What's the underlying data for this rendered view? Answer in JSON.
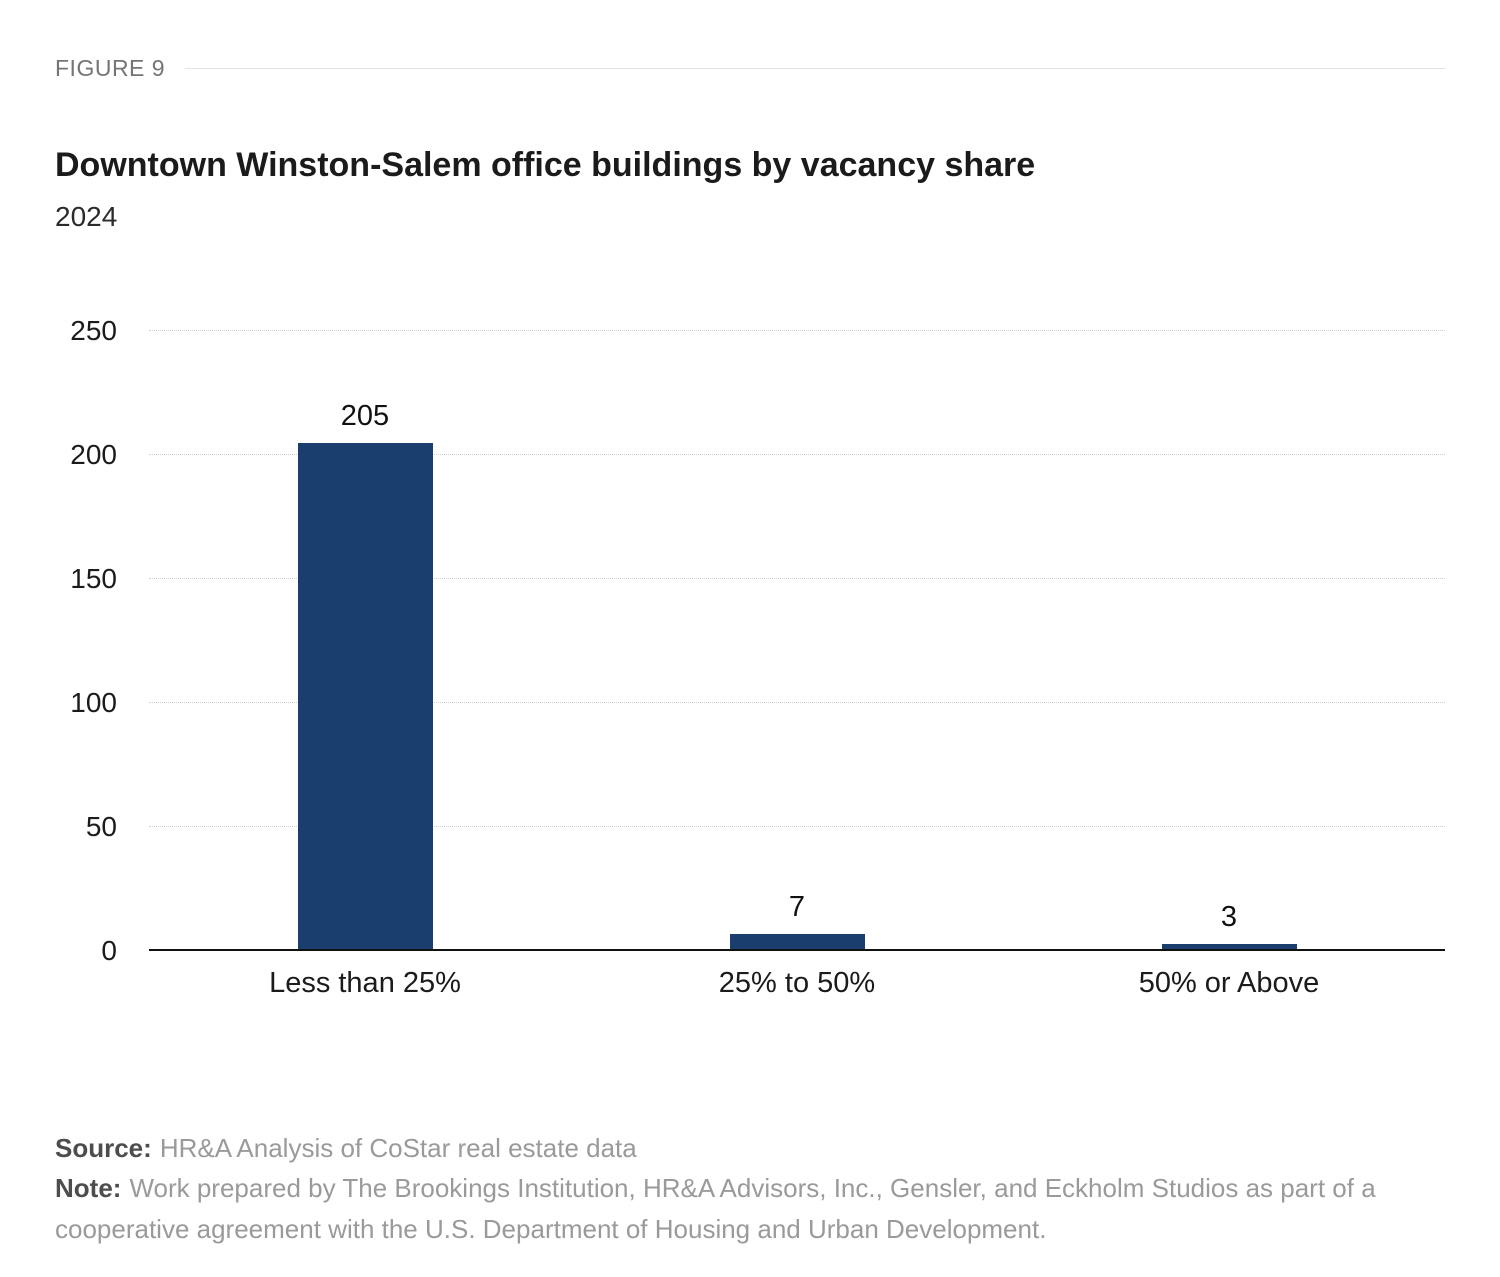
{
  "figure": {
    "label": "FIGURE 9"
  },
  "header": {
    "title": "Downtown Winston-Salem office buildings by vacancy share",
    "subtitle": "2024"
  },
  "chart_data": {
    "type": "bar",
    "title": "Downtown Winston-Salem office buildings by vacancy share",
    "subtitle": "2024",
    "categories": [
      "Less than 25%",
      "25% to 50%",
      "50% or Above"
    ],
    "values": [
      205,
      7,
      3
    ],
    "xlabel": "",
    "ylabel": "",
    "ylim": [
      0,
      250
    ],
    "yticks": [
      0,
      50,
      100,
      150,
      200,
      250
    ],
    "grid": "horizontal-dotted",
    "legend": "none",
    "data_labels": true,
    "bar_color": "#1a3e6e"
  },
  "footer": {
    "source_label": "Source:",
    "source_text": "HR&A Analysis of CoStar real estate data",
    "note_label": "Note:",
    "note_text": "Work prepared by The Brookings Institution, HR&A Advisors, Inc., Gensler, and Eckholm Studios as part of a cooperative agreement with the U.S. Department of Housing and Urban Development."
  }
}
